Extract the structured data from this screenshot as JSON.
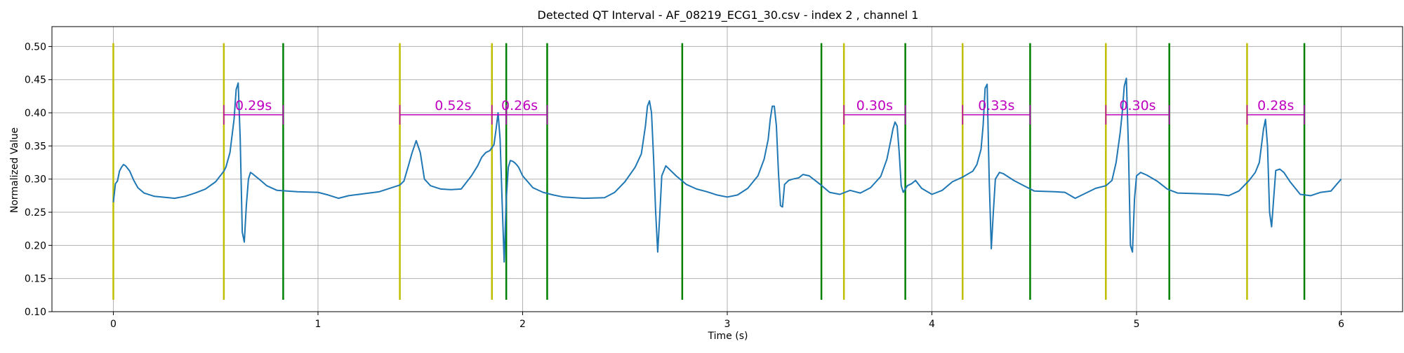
{
  "chart_data": {
    "type": "line",
    "title": "Detected QT Interval - AF_08219_ECG1_30.csv - index 2 , channel 1",
    "xlabel": "Time (s)",
    "ylabel": "Normalized Value",
    "xlim": [
      -0.3,
      6.3
    ],
    "ylim": [
      0.1,
      0.53
    ],
    "xticks": [
      0,
      1,
      2,
      3,
      4,
      5,
      6
    ],
    "yticks": [
      0.1,
      0.15,
      0.2,
      0.25,
      0.3,
      0.35,
      0.4,
      0.45,
      0.5
    ],
    "ytick_labels": [
      "0.10",
      "0.15",
      "0.20",
      "0.25",
      "0.30",
      "0.35",
      "0.40",
      "0.45",
      "0.50"
    ],
    "grid": true,
    "colors": {
      "signal": "#1f77b4",
      "q_onset_marker": "#bfbf00",
      "t_end_marker": "#008000",
      "qt_annotation": "#bf00bf"
    },
    "marker_range": [
      0.118,
      0.505
    ],
    "yellow_markers_x": [
      0.0,
      0.54,
      1.4,
      1.85,
      3.57,
      4.15,
      4.85,
      5.54
    ],
    "green_markers_x": [
      0.83,
      1.92,
      2.12,
      2.78,
      3.46,
      3.87,
      4.48,
      5.16,
      5.82
    ],
    "qt_intervals": [
      {
        "start": 0.54,
        "end": 0.83,
        "y": 0.397,
        "label": "0.29s"
      },
      {
        "start": 1.4,
        "end": 1.92,
        "y": 0.397,
        "label": "0.52s"
      },
      {
        "start": 1.85,
        "end": 2.12,
        "y": 0.397,
        "label": "0.26s"
      },
      {
        "start": 3.57,
        "end": 3.87,
        "y": 0.397,
        "label": "0.30s"
      },
      {
        "start": 4.15,
        "end": 4.48,
        "y": 0.397,
        "label": "0.33s"
      },
      {
        "start": 4.85,
        "end": 5.16,
        "y": 0.397,
        "label": "0.30s"
      },
      {
        "start": 5.54,
        "end": 5.82,
        "y": 0.397,
        "label": "0.28s"
      }
    ],
    "series": [
      {
        "x": [
          0.0,
          0.01,
          0.02,
          0.03,
          0.04,
          0.05,
          0.06,
          0.08,
          0.1,
          0.12,
          0.15,
          0.2,
          0.3,
          0.35,
          0.4,
          0.45,
          0.5,
          0.54,
          0.55,
          0.57,
          0.59,
          0.6,
          0.61,
          0.62,
          0.63,
          0.64,
          0.65,
          0.66,
          0.67,
          0.68,
          0.7,
          0.72,
          0.75,
          0.8,
          0.9,
          1.0,
          1.05,
          1.1,
          1.15,
          1.2,
          1.3,
          1.35,
          1.4,
          1.42,
          1.44,
          1.46,
          1.48,
          1.5,
          1.52,
          1.55,
          1.6,
          1.65,
          1.7,
          1.75,
          1.78,
          1.8,
          1.82,
          1.84,
          1.86,
          1.87,
          1.88,
          1.89,
          1.9,
          1.91,
          1.92,
          1.93,
          1.94,
          1.95,
          1.96,
          1.97,
          1.98,
          2.0,
          2.05,
          2.1,
          2.15,
          2.2,
          2.3,
          2.4,
          2.45,
          2.5,
          2.55,
          2.58,
          2.6,
          2.61,
          2.62,
          2.63,
          2.64,
          2.65,
          2.66,
          2.67,
          2.68,
          2.7,
          2.75,
          2.8,
          2.85,
          2.9,
          2.95,
          3.0,
          3.05,
          3.1,
          3.15,
          3.18,
          3.2,
          3.21,
          3.22,
          3.23,
          3.24,
          3.25,
          3.26,
          3.27,
          3.28,
          3.3,
          3.32,
          3.35,
          3.37,
          3.4,
          3.45,
          3.5,
          3.55,
          3.6,
          3.65,
          3.7,
          3.75,
          3.78,
          3.8,
          3.81,
          3.82,
          3.83,
          3.84,
          3.85,
          3.86,
          3.88,
          3.9,
          3.92,
          3.95,
          4.0,
          4.05,
          4.1,
          4.15,
          4.2,
          4.22,
          4.24,
          4.25,
          4.26,
          4.27,
          4.28,
          4.29,
          4.3,
          4.31,
          4.33,
          4.35,
          4.4,
          4.45,
          4.5,
          4.6,
          4.65,
          4.7,
          4.8,
          4.85,
          4.88,
          4.9,
          4.92,
          4.93,
          4.94,
          4.95,
          4.96,
          4.97,
          4.98,
          4.99,
          5.0,
          5.02,
          5.05,
          5.1,
          5.15,
          5.2,
          5.3,
          5.4,
          5.45,
          5.5,
          5.55,
          5.58,
          5.6,
          5.61,
          5.62,
          5.63,
          5.64,
          5.65,
          5.66,
          5.67,
          5.68,
          5.7,
          5.72,
          5.75,
          5.8,
          5.85,
          5.9,
          5.95,
          6.0
        ],
        "y": [
          0.265,
          0.293,
          0.297,
          0.312,
          0.318,
          0.322,
          0.32,
          0.312,
          0.298,
          0.287,
          0.279,
          0.274,
          0.271,
          0.274,
          0.279,
          0.285,
          0.296,
          0.312,
          0.318,
          0.34,
          0.39,
          0.435,
          0.445,
          0.36,
          0.22,
          0.205,
          0.26,
          0.3,
          0.31,
          0.308,
          0.303,
          0.298,
          0.29,
          0.283,
          0.281,
          0.28,
          0.276,
          0.271,
          0.275,
          0.277,
          0.281,
          0.286,
          0.291,
          0.297,
          0.318,
          0.34,
          0.358,
          0.34,
          0.3,
          0.29,
          0.285,
          0.284,
          0.285,
          0.305,
          0.32,
          0.333,
          0.34,
          0.343,
          0.352,
          0.375,
          0.4,
          0.36,
          0.265,
          0.175,
          0.27,
          0.318,
          0.328,
          0.327,
          0.325,
          0.322,
          0.318,
          0.305,
          0.287,
          0.28,
          0.276,
          0.273,
          0.271,
          0.272,
          0.28,
          0.296,
          0.318,
          0.338,
          0.38,
          0.41,
          0.418,
          0.4,
          0.33,
          0.25,
          0.19,
          0.245,
          0.305,
          0.32,
          0.305,
          0.292,
          0.285,
          0.281,
          0.276,
          0.273,
          0.276,
          0.286,
          0.305,
          0.33,
          0.36,
          0.39,
          0.41,
          0.41,
          0.38,
          0.31,
          0.26,
          0.258,
          0.292,
          0.298,
          0.3,
          0.302,
          0.307,
          0.305,
          0.293,
          0.28,
          0.277,
          0.283,
          0.279,
          0.287,
          0.304,
          0.33,
          0.36,
          0.376,
          0.386,
          0.38,
          0.34,
          0.29,
          0.28,
          0.29,
          0.293,
          0.298,
          0.286,
          0.277,
          0.283,
          0.296,
          0.303,
          0.312,
          0.322,
          0.345,
          0.38,
          0.437,
          0.443,
          0.3,
          0.195,
          0.25,
          0.3,
          0.31,
          0.308,
          0.298,
          0.29,
          0.282,
          0.281,
          0.28,
          0.271,
          0.286,
          0.29,
          0.298,
          0.325,
          0.37,
          0.4,
          0.44,
          0.452,
          0.35,
          0.2,
          0.19,
          0.27,
          0.305,
          0.31,
          0.306,
          0.297,
          0.285,
          0.279,
          0.278,
          0.277,
          0.275,
          0.282,
          0.298,
          0.31,
          0.325,
          0.35,
          0.375,
          0.39,
          0.35,
          0.25,
          0.228,
          0.27,
          0.313,
          0.315,
          0.31,
          0.296,
          0.277,
          0.275,
          0.28,
          0.282,
          0.3
        ]
      }
    ]
  }
}
